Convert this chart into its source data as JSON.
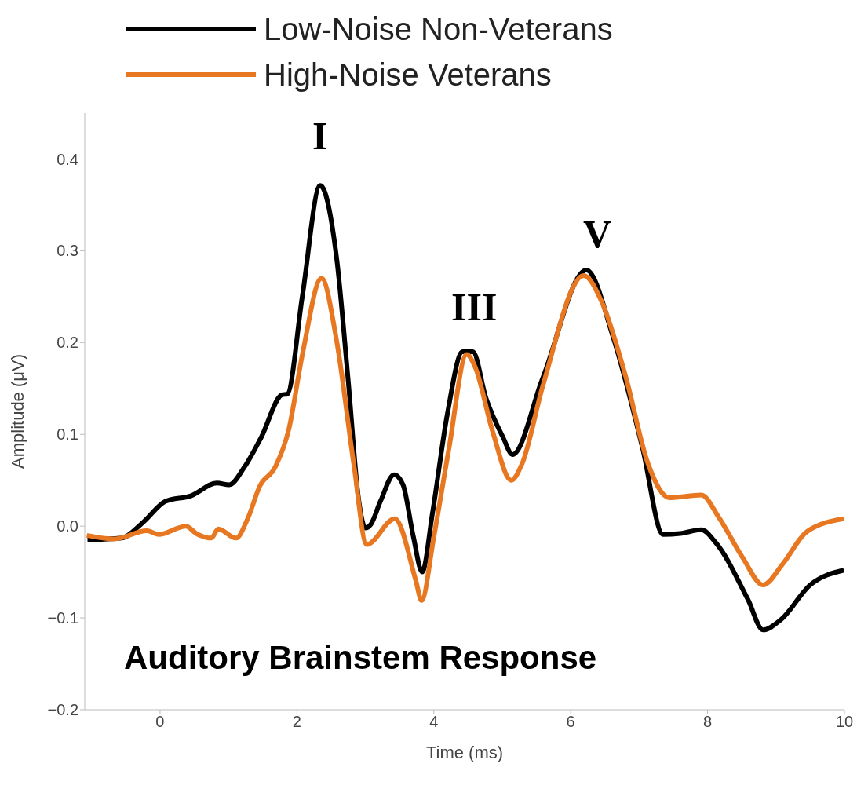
{
  "chart_data": {
    "type": "line",
    "xlabel": "Time (ms)",
    "ylabel": "Amplitude (μV)",
    "xlim": [
      -1.1,
      10
    ],
    "xticks": [
      0,
      2,
      4,
      6,
      8,
      10
    ],
    "ylim": [
      -0.2,
      0.45
    ],
    "yticks": [
      {
        "value": -0.2,
        "label": "−0.2"
      },
      {
        "value": -0.1,
        "label": "−0.1"
      },
      {
        "value": 0,
        "label": "0.0"
      },
      0.1,
      0.2,
      0.3,
      0.4
    ],
    "grid": false,
    "legend": "top",
    "marker": "none",
    "line_style": "solid",
    "annotations": [
      "Auditory Brainstem Response",
      "I",
      "III",
      "V"
    ],
    "series": [
      {
        "name": "Low-Noise Non-Veterans",
        "color": "#000000",
        "x": [
          -1.06,
          -0.56,
          -0.25,
          0.08,
          0.45,
          0.83,
          1.01,
          1.23,
          1.48,
          1.78,
          1.86,
          2.08,
          2.34,
          2.58,
          2.75,
          2.9,
          3.0,
          3.08,
          3.22,
          3.42,
          3.55,
          3.7,
          3.83,
          3.98,
          4.2,
          4.42,
          4.57,
          4.76,
          5.01,
          5.15,
          5.59,
          6.23,
          6.62,
          7.05,
          7.35,
          7.6,
          7.91,
          8.12,
          8.59,
          8.81,
          9.07,
          9.5,
          9.99
        ],
        "values": [
          -0.015,
          -0.013,
          0.004,
          0.027,
          0.033,
          0.047,
          0.045,
          0.064,
          0.097,
          0.143,
          0.144,
          0.251,
          0.371,
          0.292,
          0.158,
          0.03,
          -0.002,
          0.002,
          0.027,
          0.056,
          0.045,
          -0.011,
          -0.05,
          0.014,
          0.123,
          0.19,
          0.19,
          0.14,
          0.097,
          0.078,
          0.161,
          0.279,
          0.206,
          0.085,
          -0.009,
          -0.008,
          -0.004,
          -0.018,
          -0.08,
          -0.113,
          -0.102,
          -0.064,
          -0.048
        ]
      },
      {
        "name": "High-Noise Veterans",
        "color": "#e87722",
        "x": [
          -1.07,
          -0.67,
          -0.19,
          -0.02,
          0.38,
          0.53,
          0.75,
          0.85,
          1.11,
          1.28,
          1.46,
          1.68,
          1.88,
          2.08,
          2.36,
          2.58,
          2.83,
          3.02,
          3.43,
          3.74,
          3.82,
          4.0,
          4.22,
          4.48,
          4.6,
          4.86,
          5.13,
          5.29,
          5.59,
          6.19,
          6.45,
          6.8,
          7.13,
          7.44,
          7.91,
          8.16,
          8.51,
          8.81,
          9.1,
          9.45,
          9.99
        ],
        "values": [
          -0.01,
          -0.014,
          -0.005,
          -0.009,
          0.0,
          -0.008,
          -0.013,
          -0.003,
          -0.013,
          0.008,
          0.044,
          0.064,
          0.105,
          0.187,
          0.27,
          0.202,
          0.068,
          -0.02,
          0.008,
          -0.06,
          -0.081,
          -0.012,
          0.084,
          0.187,
          0.174,
          0.103,
          0.05,
          0.068,
          0.152,
          0.273,
          0.245,
          0.164,
          0.068,
          0.031,
          0.034,
          0.01,
          -0.034,
          -0.064,
          -0.041,
          -0.006,
          0.008
        ]
      }
    ]
  }
}
